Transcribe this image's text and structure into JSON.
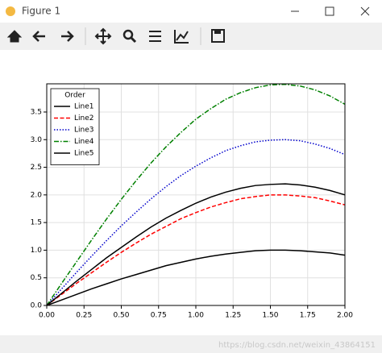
{
  "window": {
    "title": "Figure 1"
  },
  "watermark": "https://blog.csdn.net/weixin_43864151",
  "chart_data": {
    "type": "line",
    "legend": {
      "title": "Order",
      "loc": "upper left"
    },
    "grid": true,
    "x": [
      0,
      0.1,
      0.2,
      0.3,
      0.4,
      0.5,
      0.6,
      0.7,
      0.8,
      0.9,
      1.0,
      1.1,
      1.2,
      1.3,
      1.4,
      1.5,
      1.6,
      1.7,
      1.8,
      1.9,
      2.0
    ],
    "series": [
      {
        "name": "Line1",
        "color": "#000000",
        "linestyle": "solid",
        "values": [
          0,
          0.1,
          0.2,
          0.3,
          0.39,
          0.48,
          0.56,
          0.64,
          0.72,
          0.78,
          0.84,
          0.89,
          0.93,
          0.96,
          0.99,
          1.0,
          1.0,
          0.99,
          0.97,
          0.95,
          0.91
        ]
      },
      {
        "name": "Line2",
        "color": "#ff0000",
        "linestyle": "dashed",
        "values": [
          0,
          0.2,
          0.4,
          0.59,
          0.78,
          0.96,
          1.13,
          1.29,
          1.43,
          1.57,
          1.68,
          1.78,
          1.86,
          1.93,
          1.97,
          2.0,
          2.0,
          1.98,
          1.95,
          1.89,
          1.82
        ]
      },
      {
        "name": "Line3",
        "color": "#0000cc",
        "linestyle": "dotted",
        "values": [
          0,
          0.3,
          0.6,
          0.89,
          1.17,
          1.44,
          1.69,
          1.93,
          2.15,
          2.35,
          2.52,
          2.67,
          2.8,
          2.89,
          2.96,
          2.99,
          3.0,
          2.98,
          2.92,
          2.84,
          2.73
        ]
      },
      {
        "name": "Line4",
        "color": "#008000",
        "linestyle": "dashdot",
        "values": [
          0,
          0.4,
          0.79,
          1.18,
          1.56,
          1.92,
          2.26,
          2.58,
          2.87,
          3.13,
          3.37,
          3.56,
          3.73,
          3.85,
          3.94,
          3.99,
          4.0,
          3.97,
          3.9,
          3.79,
          3.64
        ]
      },
      {
        "name": "Line5",
        "color": "#000000",
        "linestyle": "solid",
        "values": [
          0,
          0.22,
          0.44,
          0.65,
          0.86,
          1.05,
          1.24,
          1.42,
          1.58,
          1.72,
          1.85,
          1.96,
          2.05,
          2.12,
          2.17,
          2.19,
          2.2,
          2.18,
          2.14,
          2.08,
          2.0
        ]
      }
    ],
    "xlim": [
      0,
      2
    ],
    "ylim": [
      0,
      4.01
    ],
    "xticks": [
      {
        "value": 0,
        "label": "0.00"
      },
      {
        "value": 0.25,
        "label": "0.25"
      },
      {
        "value": 0.5,
        "label": "0.50"
      },
      {
        "value": 0.75,
        "label": "0.75"
      },
      {
        "value": 1,
        "label": "1.00"
      },
      {
        "value": 1.25,
        "label": "1.25"
      },
      {
        "value": 1.5,
        "label": "1.50"
      },
      {
        "value": 1.75,
        "label": "1.75"
      },
      {
        "value": 2,
        "label": "2.00"
      }
    ],
    "yticks": [
      {
        "value": 0,
        "label": "0.0"
      },
      {
        "value": 0.5,
        "label": "0.5"
      },
      {
        "value": 1,
        "label": "1.0"
      },
      {
        "value": 1.5,
        "label": "1.5"
      },
      {
        "value": 2,
        "label": "2.0"
      },
      {
        "value": 2.5,
        "label": "2.5"
      },
      {
        "value": 3,
        "label": "3.0"
      },
      {
        "value": 3.5,
        "label": "3.5"
      }
    ]
  }
}
